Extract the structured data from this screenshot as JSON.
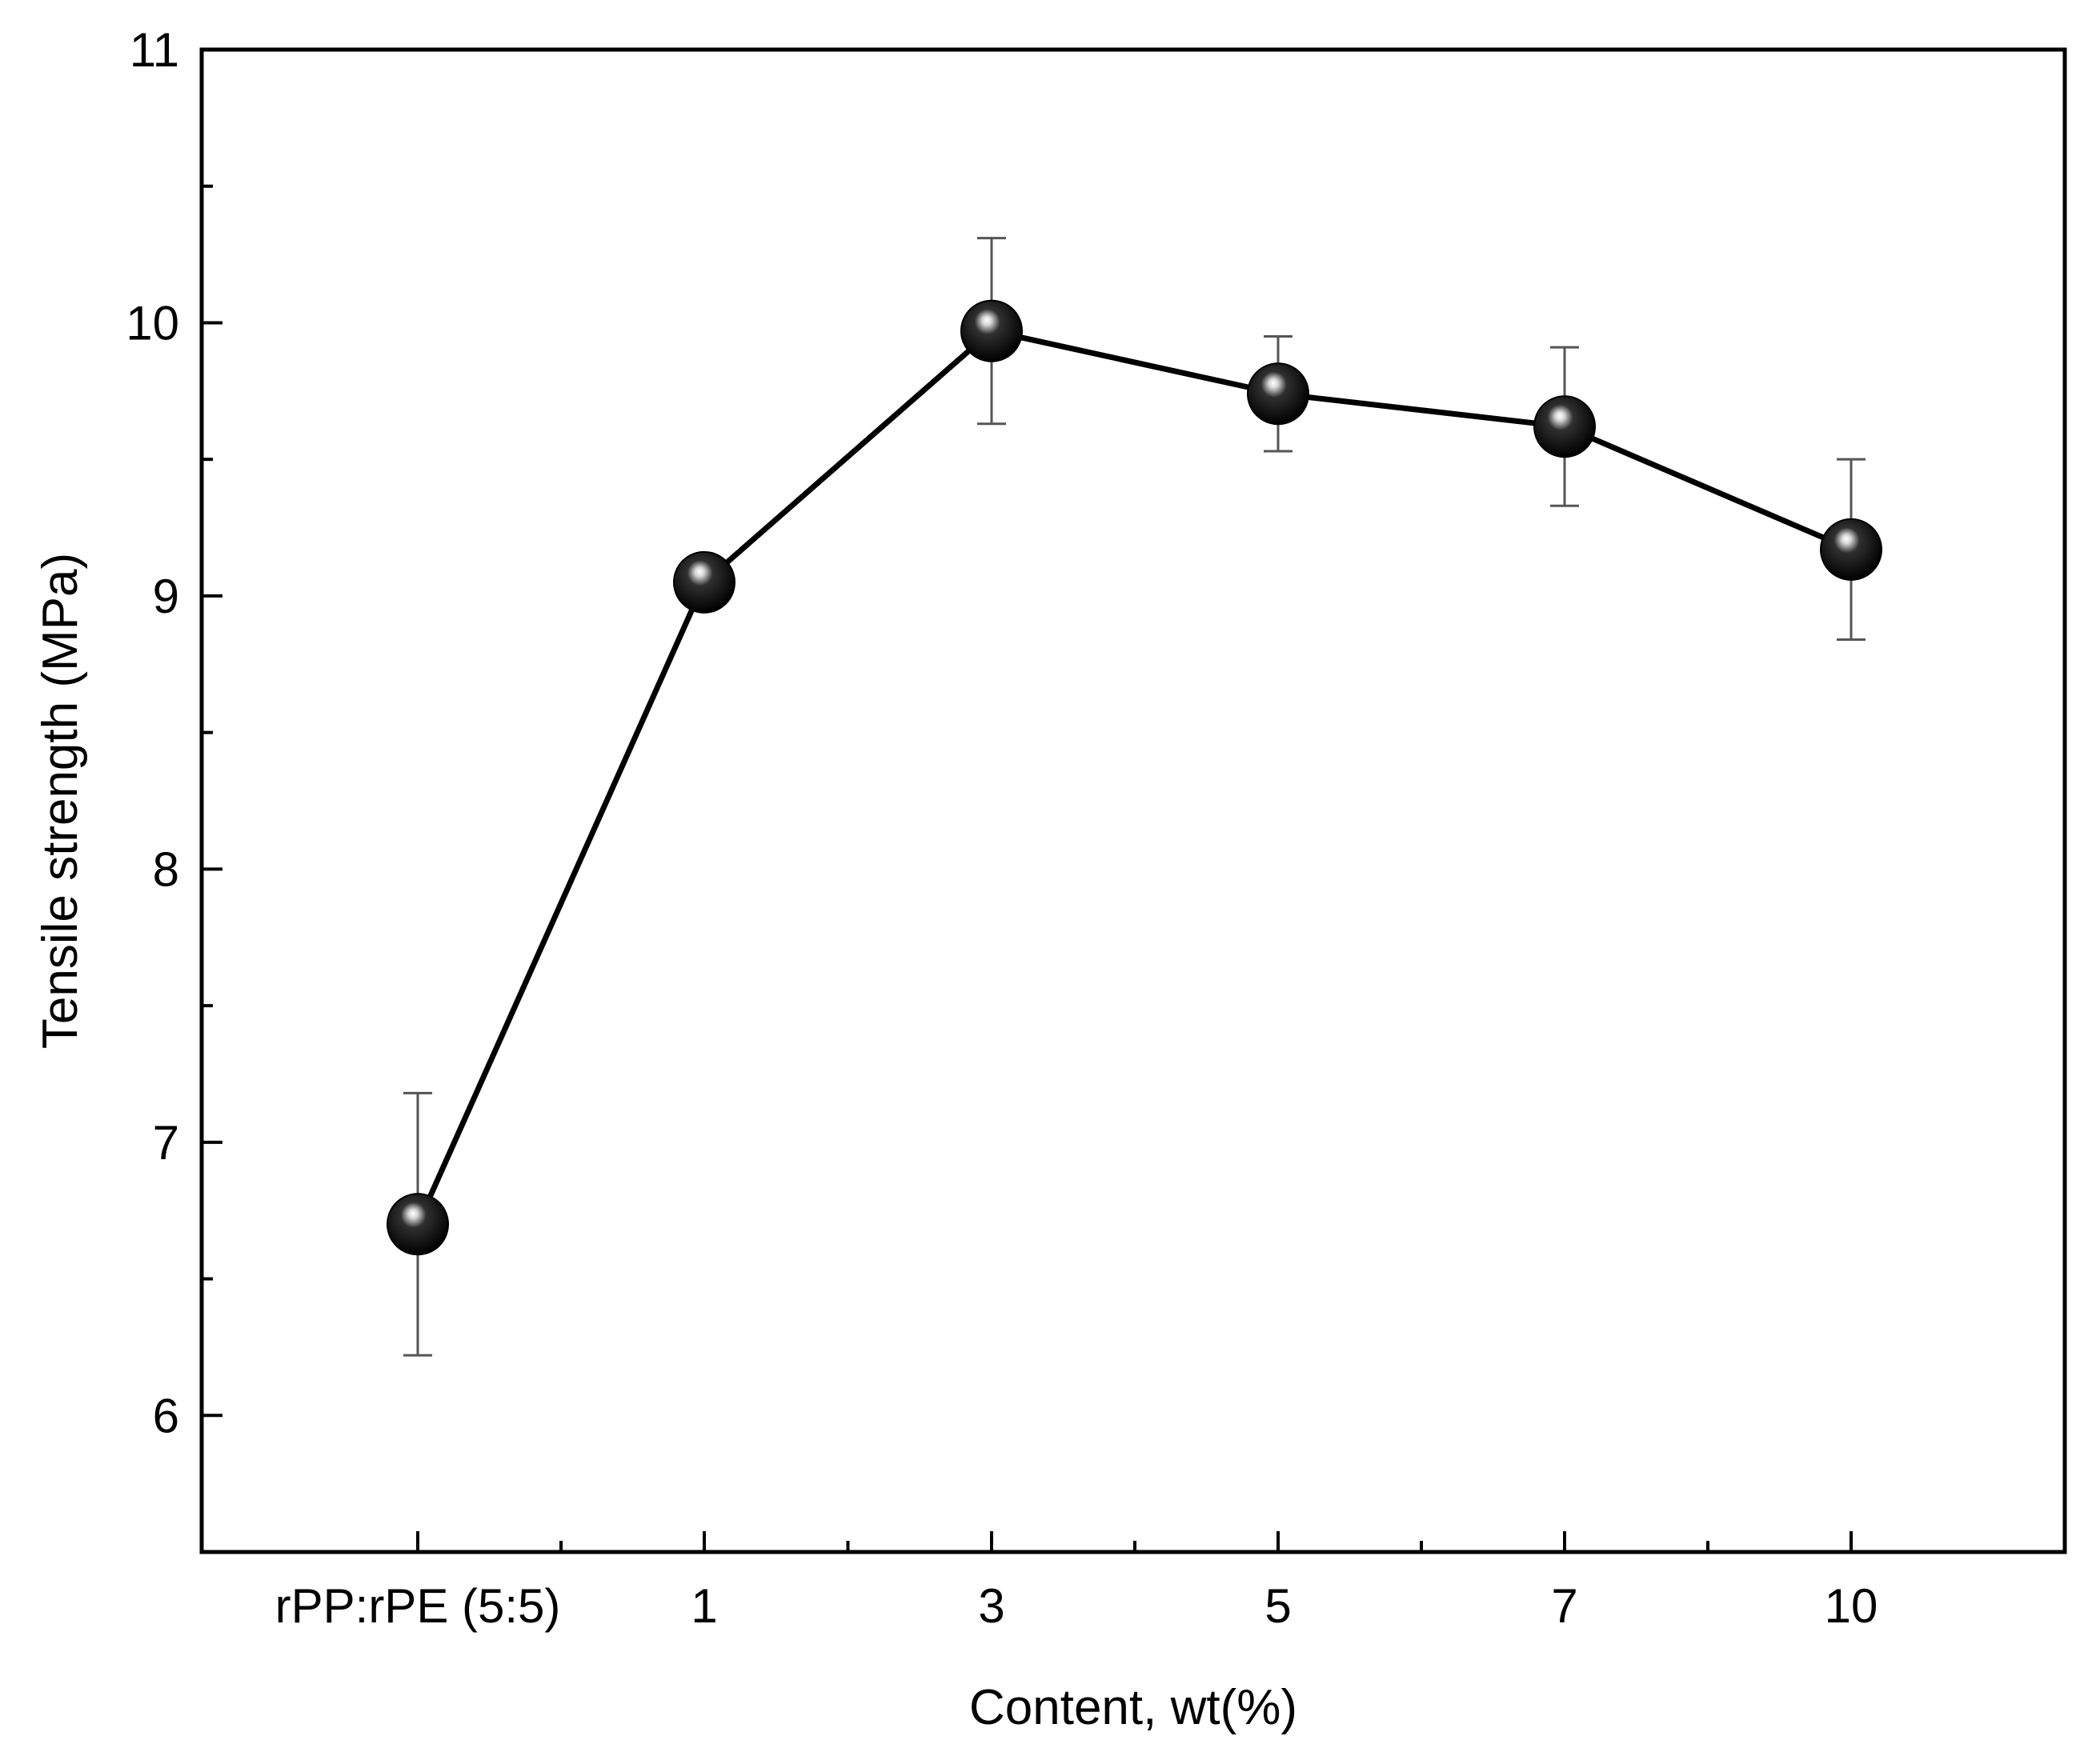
{
  "chart_data": {
    "type": "line",
    "title": "",
    "xlabel": "Content, wt(%)",
    "ylabel": "Tensile strength (MPa)",
    "categories": [
      "rPP:rPE (5:5)",
      "1",
      "3",
      "5",
      "7",
      "10"
    ],
    "ylim": [
      5.5,
      11
    ],
    "yticks": [
      6,
      7,
      8,
      9,
      10,
      11
    ],
    "yticks_minor": [
      5.5,
      6.5,
      7.5,
      8.5,
      9.5,
      10.5
    ],
    "grid": false,
    "legend": "none",
    "series": [
      {
        "values": [
          6.7,
          9.05,
          9.97,
          9.74,
          9.62,
          9.17
        ],
        "error_upper": [
          7.18,
          9.05,
          10.31,
          9.95,
          9.91,
          9.5
        ],
        "error_lower": [
          6.22,
          9.05,
          9.63,
          9.53,
          9.33,
          8.84
        ],
        "marker": "sphere",
        "color": "#000000"
      }
    ]
  }
}
